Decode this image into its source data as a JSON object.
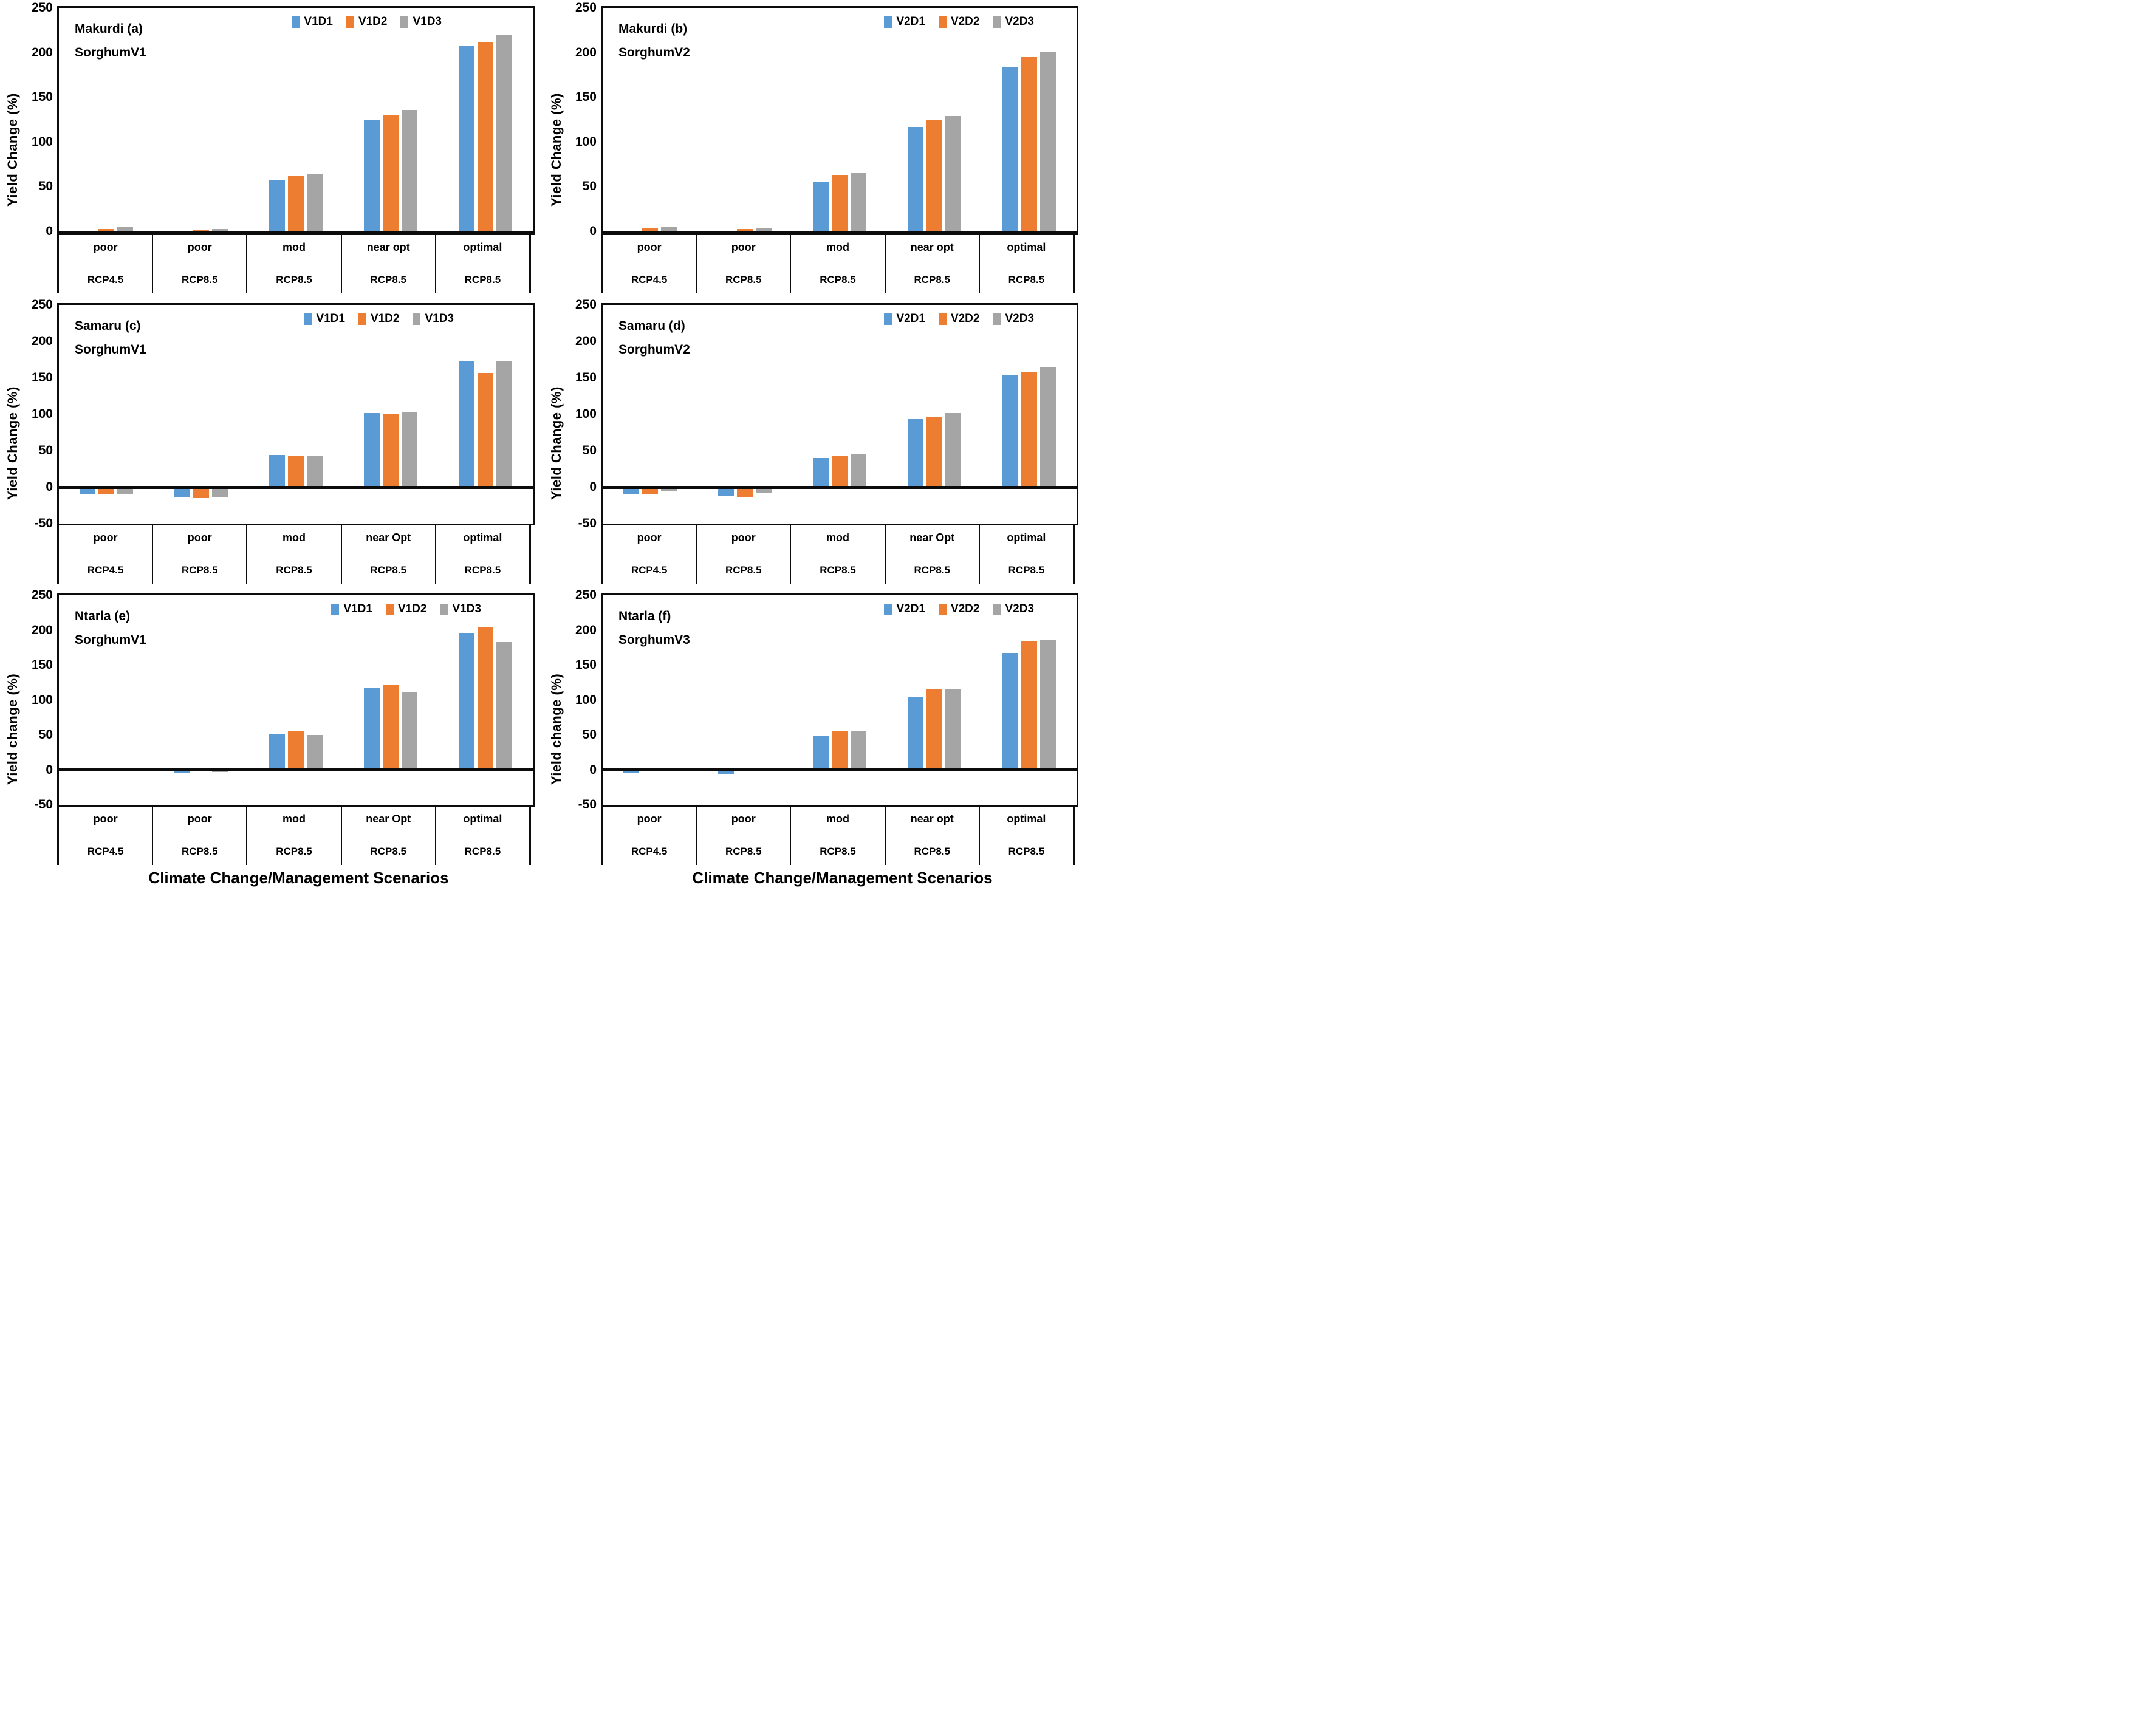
{
  "figure": {
    "x_axis_title": "Climate Change/Management Scenarios",
    "background_color": "#ffffff",
    "axis_color": "#0c0c0c",
    "series_palette": {
      "D1": "#5B9BD5",
      "D2": "#ED7D31",
      "D3": "#A5A5A5"
    }
  },
  "chart_data": [
    {
      "type": "bar",
      "panel": "a",
      "title_lines": [
        "Makurdi (a)",
        "SorghumV1"
      ],
      "ylabel": "Yield Change (%)",
      "ylim": [
        0,
        250
      ],
      "yticks": [
        250,
        200,
        150,
        100,
        50,
        0
      ],
      "grid": false,
      "legend_position": "top-right",
      "legend_right": 150,
      "categories": [
        {
          "level": "poor",
          "rcp": "RCP4.5"
        },
        {
          "level": "poor",
          "rcp": "RCP8.5"
        },
        {
          "level": "mod",
          "rcp": "RCP8.5"
        },
        {
          "level": "near opt",
          "rcp": "RCP8.5"
        },
        {
          "level": "optimal",
          "rcp": "RCP8.5"
        }
      ],
      "series": [
        {
          "name": "V1D1",
          "color": "#5B9BD5",
          "values": [
            1,
            1,
            57,
            125,
            207
          ]
        },
        {
          "name": "V1D2",
          "color": "#ED7D31",
          "values": [
            3,
            2,
            62,
            130,
            212
          ]
        },
        {
          "name": "V1D3",
          "color": "#A5A5A5",
          "values": [
            5,
            3,
            64,
            136,
            220
          ]
        }
      ]
    },
    {
      "type": "bar",
      "panel": "b",
      "title_lines": [
        "Makurdi (b)",
        "SorghumV2"
      ],
      "ylabel": "Yield Change (%)",
      "ylim": [
        0,
        250
      ],
      "yticks": [
        250,
        200,
        150,
        100,
        50,
        0
      ],
      "grid": false,
      "legend_position": "top-right",
      "legend_right": 70,
      "categories": [
        {
          "level": "poor",
          "rcp": "RCP4.5"
        },
        {
          "level": "poor",
          "rcp": "RCP8.5"
        },
        {
          "level": "mod",
          "rcp": "RCP8.5"
        },
        {
          "level": "near opt",
          "rcp": "RCP8.5"
        },
        {
          "level": "optimal",
          "rcp": "RCP8.5"
        }
      ],
      "series": [
        {
          "name": "V2D1",
          "color": "#5B9BD5",
          "values": [
            1,
            1,
            56,
            117,
            184
          ]
        },
        {
          "name": "V2D2",
          "color": "#ED7D31",
          "values": [
            4,
            3,
            63,
            125,
            195
          ]
        },
        {
          "name": "V2D3",
          "color": "#A5A5A5",
          "values": [
            5,
            4,
            65,
            129,
            201
          ]
        }
      ]
    },
    {
      "type": "bar",
      "panel": "c",
      "title_lines": [
        "Samaru (c)",
        "SorghumV1"
      ],
      "ylabel": "Yield Change (%)",
      "ylim": [
        -50,
        250
      ],
      "yticks": [
        250,
        200,
        150,
        100,
        50,
        0,
        -50
      ],
      "grid": false,
      "legend_position": "top-right",
      "legend_right": 130,
      "categories": [
        {
          "level": "poor",
          "rcp": "RCP4.5"
        },
        {
          "level": "poor",
          "rcp": "RCP8.5"
        },
        {
          "level": "mod",
          "rcp": "RCP8.5"
        },
        {
          "level": "near Opt",
          "rcp": "RCP8.5"
        },
        {
          "level": "optimal",
          "rcp": "RCP8.5"
        }
      ],
      "series": [
        {
          "name": "V1D1",
          "color": "#5B9BD5",
          "values": [
            -9,
            -13,
            44,
            102,
            173
          ]
        },
        {
          "name": "V1D2",
          "color": "#ED7D31",
          "values": [
            -10,
            -15,
            43,
            101,
            157
          ]
        },
        {
          "name": "V1D3",
          "color": "#A5A5A5",
          "values": [
            -10,
            -14,
            43,
            103,
            173
          ]
        }
      ]
    },
    {
      "type": "bar",
      "panel": "d",
      "title_lines": [
        "Samaru (d)",
        "SorghumV2"
      ],
      "ylabel": "Yield Change (%)",
      "ylim": [
        -50,
        250
      ],
      "yticks": [
        250,
        200,
        150,
        100,
        50,
        0,
        -50
      ],
      "grid": false,
      "legend_position": "top-right",
      "legend_right": 70,
      "categories": [
        {
          "level": "poor",
          "rcp": "RCP4.5"
        },
        {
          "level": "poor",
          "rcp": "RCP8.5"
        },
        {
          "level": "mod",
          "rcp": "RCP8.5"
        },
        {
          "level": "near Opt",
          "rcp": "RCP8.5"
        },
        {
          "level": "optimal",
          "rcp": "RCP8.5"
        }
      ],
      "series": [
        {
          "name": "V2D1",
          "color": "#5B9BD5",
          "values": [
            -10,
            -12,
            40,
            94,
            153
          ]
        },
        {
          "name": "V2D2",
          "color": "#ED7D31",
          "values": [
            -9,
            -13,
            43,
            97,
            158
          ]
        },
        {
          "name": "V2D3",
          "color": "#A5A5A5",
          "values": [
            -6,
            -8,
            46,
            102,
            164
          ]
        }
      ]
    },
    {
      "type": "bar",
      "panel": "e",
      "title_lines": [
        "Ntarla (e)",
        "SorghumV1"
      ],
      "ylabel": "Yield change (%)",
      "ylim": [
        -50,
        250
      ],
      "yticks": [
        250,
        200,
        150,
        100,
        50,
        0,
        -50
      ],
      "grid": false,
      "legend_position": "top-right",
      "legend_right": 85,
      "categories": [
        {
          "level": "poor",
          "rcp": "RCP4.5"
        },
        {
          "level": "poor",
          "rcp": "RCP8.5"
        },
        {
          "level": "mod",
          "rcp": "RCP8.5"
        },
        {
          "level": "near Opt",
          "rcp": "RCP8.5"
        },
        {
          "level": "optimal",
          "rcp": "RCP8.5"
        }
      ],
      "series": [
        {
          "name": "V1D1",
          "color": "#5B9BD5",
          "values": [
            -2,
            -4,
            51,
            117,
            196
          ]
        },
        {
          "name": "V1D2",
          "color": "#ED7D31",
          "values": [
            0,
            -1,
            56,
            122,
            205
          ]
        },
        {
          "name": "V1D3",
          "color": "#A5A5A5",
          "values": [
            -2,
            -3,
            50,
            111,
            183
          ]
        }
      ]
    },
    {
      "type": "bar",
      "panel": "f",
      "title_lines": [
        "Ntarla (f)",
        "SorghumV3"
      ],
      "ylabel": "Yield change (%)",
      "ylim": [
        -50,
        250
      ],
      "yticks": [
        250,
        200,
        150,
        100,
        50,
        0,
        -50
      ],
      "grid": false,
      "legend_position": "top-right",
      "legend_right": 70,
      "categories": [
        {
          "level": "poor",
          "rcp": "RCP4.5"
        },
        {
          "level": "poor",
          "rcp": "RCP8.5"
        },
        {
          "level": "mod",
          "rcp": "RCP8.5"
        },
        {
          "level": "near opt",
          "rcp": "RCP8.5"
        },
        {
          "level": "optimal",
          "rcp": "RCP8.5"
        }
      ],
      "series": [
        {
          "name": "V2D1",
          "color": "#5B9BD5",
          "values": [
            -4,
            -6,
            48,
            105,
            167
          ]
        },
        {
          "name": "V2D2",
          "color": "#ED7D31",
          "values": [
            0,
            0,
            55,
            115,
            184
          ]
        },
        {
          "name": "V2D3",
          "color": "#A5A5A5",
          "values": [
            0,
            0,
            55,
            115,
            186
          ]
        }
      ]
    }
  ]
}
